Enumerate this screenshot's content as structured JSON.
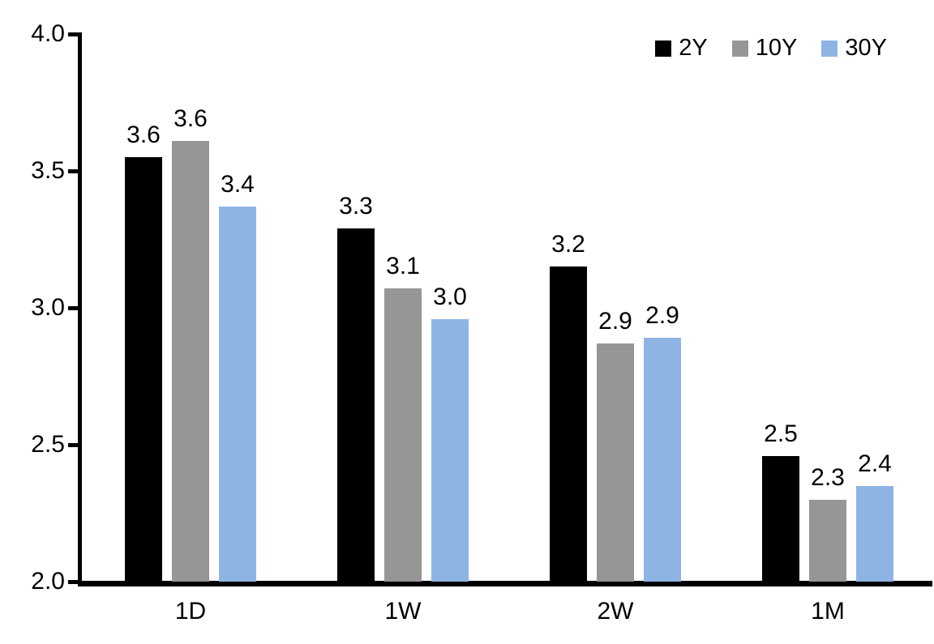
{
  "chart_data": {
    "type": "bar",
    "title": "",
    "xlabel": "",
    "ylabel": "",
    "categories": [
      "1D",
      "1W",
      "2W",
      "1M"
    ],
    "series": [
      {
        "name": "2Y",
        "color": "#000000",
        "values": [
          3.55,
          3.29,
          3.15,
          2.46
        ],
        "labels": [
          "3.6",
          "3.3",
          "3.2",
          "2.5"
        ]
      },
      {
        "name": "10Y",
        "color": "#969696",
        "values": [
          3.61,
          3.07,
          2.87,
          2.3
        ],
        "labels": [
          "3.6",
          "3.1",
          "2.9",
          "2.3"
        ]
      },
      {
        "name": "30Y",
        "color": "#8EB4E3",
        "values": [
          3.37,
          2.96,
          2.89,
          2.35
        ],
        "labels": [
          "3.4",
          "3.0",
          "2.9",
          "2.4"
        ]
      }
    ],
    "ylim": [
      2.0,
      4.0
    ],
    "ytick_step": 0.5,
    "ytick_labels": [
      "2.0",
      "2.5",
      "3.0",
      "3.5",
      "4.0"
    ],
    "grid": false,
    "legend_position": "top-right",
    "axis_color": "#000000",
    "background_color": "#ffffff",
    "text_color": "#000000"
  }
}
